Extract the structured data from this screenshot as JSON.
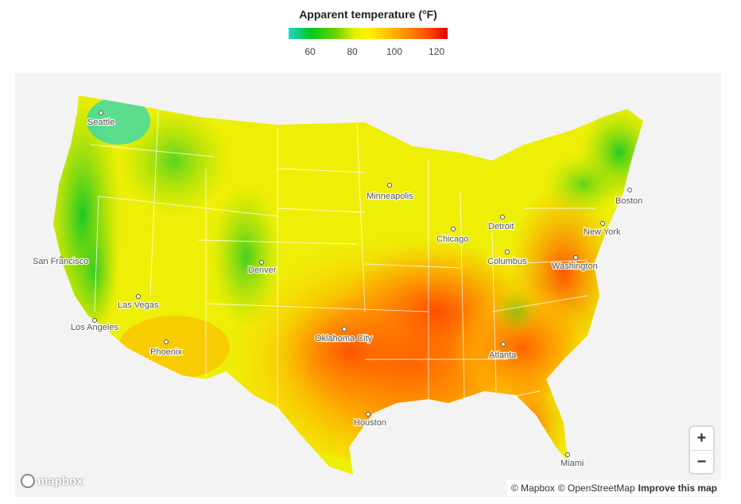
{
  "legend": {
    "title": "Apparent temperature (°F)",
    "ticks": [
      "60",
      "80",
      "100",
      "120"
    ],
    "gradient": [
      "#1ed6c8",
      "#00c81e",
      "#6fd400",
      "#e8f000",
      "#fff200",
      "#ffc400",
      "#ff8a00",
      "#ff4a00",
      "#e00000"
    ]
  },
  "map": {
    "background_color": "#f3f3f3",
    "land_outside_color": "#f7f7f7",
    "water_color": "#e4e4e4",
    "cities": [
      {
        "name": "Seattle"
      },
      {
        "name": "San Francisco"
      },
      {
        "name": "Los Angeles"
      },
      {
        "name": "Las Vegas"
      },
      {
        "name": "Phoenix"
      },
      {
        "name": "Denver"
      },
      {
        "name": "Minneapolis"
      },
      {
        "name": "Chicago"
      },
      {
        "name": "Detroit"
      },
      {
        "name": "Boston"
      },
      {
        "name": "New York"
      },
      {
        "name": "Columbus"
      },
      {
        "name": "Washington"
      },
      {
        "name": "Oklahoma City"
      },
      {
        "name": "Atlanta"
      },
      {
        "name": "Houston"
      },
      {
        "name": "Miami"
      }
    ]
  },
  "controls": {
    "zoom_in": "+",
    "zoom_out": "−"
  },
  "branding": {
    "logo_text": "mapbox"
  },
  "attribution": {
    "mapbox": "© Mapbox",
    "osm": "© OpenStreetMap",
    "improve": "Improve this map"
  }
}
